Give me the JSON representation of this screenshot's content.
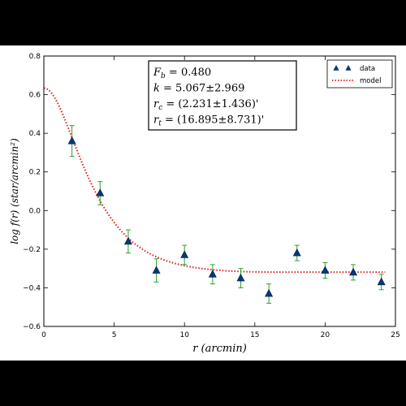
{
  "chart_data": {
    "type": "scatter",
    "xlabel": "r (arcmin)",
    "ylabel": "log f(r) (star/arcmin²)",
    "xlim": [
      0,
      25
    ],
    "ylim": [
      -0.6,
      0.8
    ],
    "xticks": [
      0,
      5,
      10,
      15,
      20,
      25
    ],
    "yticks": [
      -0.6,
      -0.4,
      -0.2,
      0.0,
      0.2,
      0.4,
      0.6,
      0.8
    ],
    "xtick_labels": [
      "0",
      "5",
      "10",
      "15",
      "20",
      "25"
    ],
    "ytick_labels": [
      "−0.6",
      "−0.4",
      "−0.2",
      "0.0",
      "0.2",
      "0.4",
      "0.6",
      "0.8"
    ],
    "grid": false,
    "legend_position": "top-right",
    "series": [
      {
        "name": "data",
        "kind": "points-with-errorbars",
        "color": "#003a7a",
        "errorbar_color": "#2ca02c",
        "x": [
          2,
          4,
          6,
          8,
          10,
          12,
          14,
          16,
          18,
          20,
          22,
          24
        ],
        "y": [
          0.36,
          0.09,
          -0.16,
          -0.31,
          -0.23,
          -0.33,
          -0.35,
          -0.43,
          -0.22,
          -0.31,
          -0.32,
          -0.37
        ],
        "yerr": [
          0.08,
          0.06,
          0.06,
          0.06,
          0.05,
          0.05,
          0.05,
          0.05,
          0.04,
          0.04,
          0.04,
          0.04
        ]
      },
      {
        "name": "model",
        "kind": "dotted-line",
        "color": "#e0201b",
        "params": {
          "f_b": 0.48,
          "k": 5.067,
          "r_c": 2.231,
          "r_t": 16.895
        }
      }
    ],
    "annotation": {
      "lines": [
        {
          "sym": "F",
          "sub": "b",
          "text": " = 0.480"
        },
        {
          "sym": "k",
          "sub": "",
          "text": " = 5.067±2.969"
        },
        {
          "sym": "r",
          "sub": "c",
          "text": " = (2.231±1.436)'"
        },
        {
          "sym": "r",
          "sub": "t",
          "text": " = (16.895±8.731)'"
        }
      ]
    }
  }
}
